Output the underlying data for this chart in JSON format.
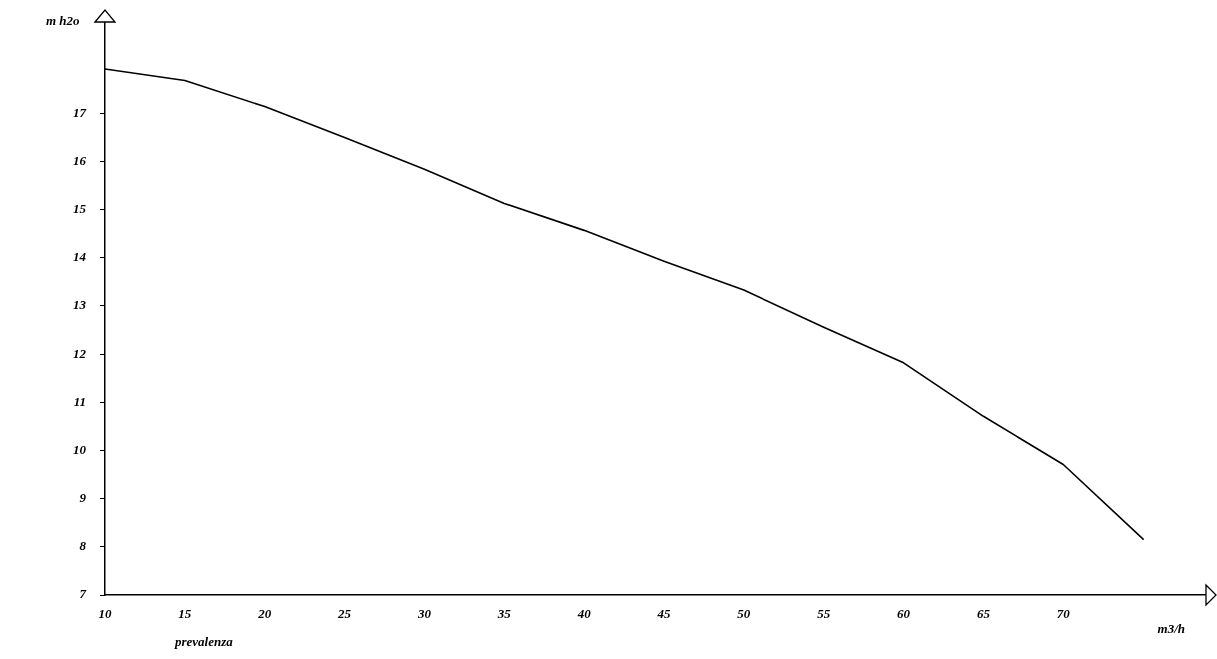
{
  "chart_data": {
    "type": "line",
    "xlabel": "m3/h",
    "ylabel": "m h2o",
    "annotations": [
      "prevalenza"
    ],
    "x": [
      10,
      15,
      20,
      25,
      30,
      35,
      40,
      45,
      50,
      55,
      60,
      65,
      70,
      75
    ],
    "series": [
      {
        "color": "#000000",
        "values": [
          17.92,
          17.68,
          17.14,
          16.5,
          15.84,
          15.13,
          14.57,
          13.93,
          13.33,
          12.56,
          11.82,
          10.71,
          9.71,
          8.16
        ]
      }
    ],
    "xlim": [
      10,
      79.5
    ],
    "ylim": [
      7,
      18.9
    ],
    "xticks": [
      10,
      15,
      20,
      25,
      30,
      35,
      40,
      45,
      50,
      55,
      60,
      65,
      70
    ],
    "yticks": [
      7,
      8,
      9,
      10,
      11,
      12,
      13,
      14,
      15,
      16,
      17
    ],
    "grid": false,
    "legend": false,
    "marker": "none",
    "line_style": "solid"
  }
}
